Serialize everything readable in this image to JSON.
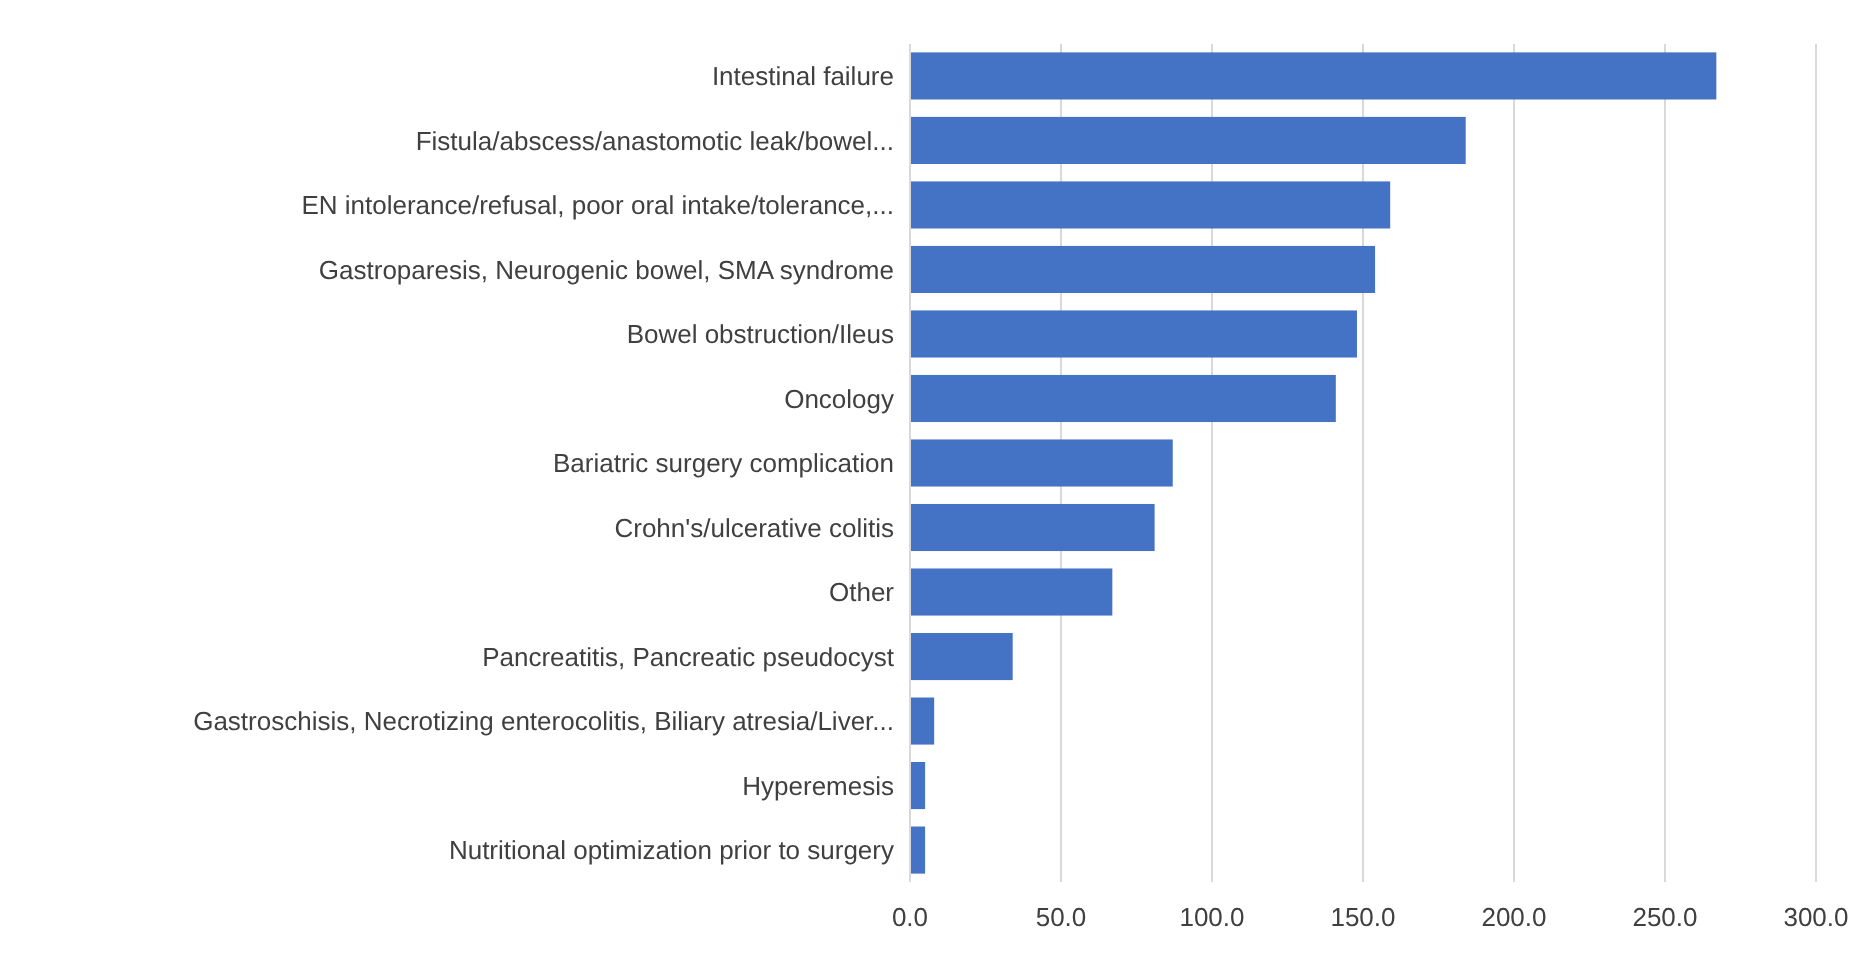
{
  "chart_data": {
    "type": "bar",
    "orientation": "horizontal",
    "categories": [
      "Intestinal failure",
      "Fistula/abscess/anastomotic leak/bowel...",
      "EN intolerance/refusal, poor oral intake/tolerance,...",
      "Gastroparesis, Neurogenic bowel, SMA syndrome",
      "Bowel obstruction/Ileus",
      "Oncology",
      "Bariatric surgery complication",
      "Crohn's/ulcerative colitis",
      "Other",
      "Pancreatitis, Pancreatic pseudocyst",
      "Gastroschisis, Necrotizing enterocolitis, Biliary atresia/Liver...",
      "Hyperemesis",
      "Nutritional optimization prior to surgery"
    ],
    "values": [
      267,
      184,
      159,
      154,
      148,
      141,
      87,
      81,
      67,
      34,
      8,
      5,
      5
    ],
    "color": "#4472c4",
    "xlim": [
      0,
      300
    ],
    "xticks": [
      {
        "value": 0,
        "label": "0.0"
      },
      {
        "value": 50,
        "label": "50.0"
      },
      {
        "value": 100,
        "label": "100.0"
      },
      {
        "value": 150,
        "label": "150.0"
      },
      {
        "value": 200,
        "label": "200.0"
      },
      {
        "value": 250,
        "label": "250.0"
      },
      {
        "value": 300,
        "label": "300.0"
      }
    ],
    "grid": "x"
  }
}
